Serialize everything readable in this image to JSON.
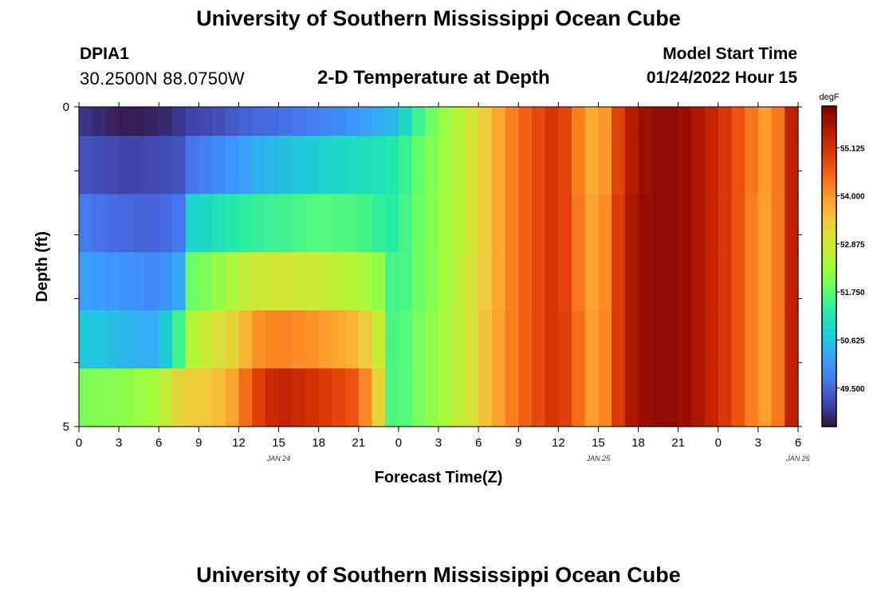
{
  "header": {
    "title": "University of Southern Mississippi Ocean Cube",
    "station_id": "DPIA1",
    "coordinates": "30.2500N  88.0750W",
    "plot_title": "2-D Temperature at Depth",
    "model_start_label": "Model Start Time",
    "model_start_value": "01/24/2022 Hour 15"
  },
  "footer": {
    "title": "University of Southern Mississippi Ocean Cube"
  },
  "colors": {
    "scale": [
      "#30123b",
      "#4145ab",
      "#4675ed",
      "#39a2fc",
      "#1bcfd4",
      "#24eca6",
      "#61fc6c",
      "#a4fc3b",
      "#d1e834",
      "#f3c63a",
      "#fe9b2d",
      "#f36315",
      "#d93806",
      "#b11901",
      "#7a0403"
    ]
  },
  "chart_data": {
    "type": "heatmap",
    "title": "2-D Temperature at Depth",
    "xlabel": "Forecast Time(Z)",
    "ylabel": "Depth (ft)",
    "x_ticks": [
      "0",
      "3",
      "6",
      "9",
      "12",
      "15",
      "18",
      "21",
      "0",
      "3",
      "6",
      "9",
      "12",
      "15",
      "18",
      "21",
      "0",
      "3",
      "6"
    ],
    "date_labels": [
      {
        "label": "JAN 24",
        "at_hour": 15
      },
      {
        "label": "JAN 25",
        "at_hour": 39
      },
      {
        "label": "JAN 26",
        "at_hour": 54
      }
    ],
    "x_range_hours": [
      0,
      54
    ],
    "y_ticks": [
      "0",
      "5"
    ],
    "y_range": [
      0,
      5
    ],
    "depth_rows": [
      0,
      1,
      2,
      3,
      4,
      5
    ],
    "colorbar": {
      "unit": "degF",
      "min": 48.6,
      "max": 56.1,
      "tick_labels": [
        "55.125",
        "54.000",
        "52.875",
        "51.750",
        "50.625",
        "49.500"
      ]
    },
    "keyframes": [
      {
        "hour": 0,
        "values": [
          49.0,
          49.3,
          49.8,
          50.2,
          50.7,
          52.0
        ]
      },
      {
        "hour": 2,
        "values": [
          48.8,
          49.2,
          49.6,
          50.1,
          50.6,
          52.1
        ]
      },
      {
        "hour": 4,
        "values": [
          48.7,
          49.1,
          49.5,
          50.0,
          50.4,
          52.2
        ]
      },
      {
        "hour": 6,
        "values": [
          48.8,
          49.2,
          49.5,
          49.9,
          50.3,
          52.4
        ]
      },
      {
        "hour": 7.5,
        "values": [
          49.0,
          49.3,
          49.7,
          50.3,
          51.5,
          53.2
        ]
      },
      {
        "hour": 8,
        "values": [
          49.1,
          49.6,
          50.8,
          51.8,
          52.4,
          53.3
        ]
      },
      {
        "hour": 10,
        "values": [
          49.2,
          49.9,
          51.0,
          52.1,
          52.9,
          53.4
        ]
      },
      {
        "hour": 12,
        "values": [
          49.4,
          50.1,
          51.3,
          52.6,
          53.3,
          54.0
        ]
      },
      {
        "hour": 13,
        "values": [
          49.5,
          50.3,
          51.4,
          52.8,
          54.0,
          54.8
        ]
      },
      {
        "hour": 15,
        "values": [
          49.6,
          50.5,
          51.5,
          52.9,
          54.2,
          55.4
        ]
      },
      {
        "hour": 18,
        "values": [
          49.8,
          50.8,
          51.7,
          52.8,
          54.0,
          55.1
        ]
      },
      {
        "hour": 21,
        "values": [
          50.1,
          51.0,
          51.6,
          52.5,
          53.6,
          54.6
        ]
      },
      {
        "hour": 22.5,
        "values": [
          50.3,
          51.1,
          51.4,
          52.2,
          52.8,
          53.2
        ]
      },
      {
        "hour": 23,
        "values": [
          50.4,
          51.2,
          51.3,
          51.7,
          51.7,
          51.8
        ]
      },
      {
        "hour": 24,
        "values": [
          50.6,
          51.2,
          51.3,
          51.4,
          51.5,
          51.5
        ]
      },
      {
        "hour": 25,
        "values": [
          51.3,
          51.7,
          51.8,
          51.8,
          51.9,
          51.9
        ]
      },
      {
        "hour": 27,
        "values": [
          52.1,
          52.2,
          52.2,
          52.2,
          52.3,
          52.3
        ]
      },
      {
        "hour": 29,
        "values": [
          52.7,
          52.7,
          52.7,
          52.8,
          52.8,
          52.8
        ]
      },
      {
        "hour": 31,
        "values": [
          53.6,
          53.6,
          53.6,
          53.6,
          53.7,
          53.7
        ]
      },
      {
        "hour": 33,
        "values": [
          54.4,
          54.4,
          54.4,
          54.4,
          54.4,
          54.4
        ]
      },
      {
        "hour": 36,
        "values": [
          55.2,
          55.2,
          55.2,
          55.2,
          55.2,
          55.2
        ]
      },
      {
        "hour": 38,
        "values": [
          53.9,
          53.9,
          54.0,
          54.0,
          54.1,
          54.1
        ]
      },
      {
        "hour": 39,
        "values": [
          53.6,
          53.6,
          53.7,
          53.7,
          53.8,
          53.8
        ]
      },
      {
        "hour": 40,
        "values": [
          54.4,
          54.4,
          54.5,
          54.5,
          54.5,
          54.5
        ]
      },
      {
        "hour": 41,
        "values": [
          55.4,
          55.4,
          55.5,
          55.5,
          55.5,
          55.5
        ]
      },
      {
        "hour": 43,
        "values": [
          55.9,
          55.9,
          55.9,
          55.9,
          55.9,
          55.9
        ]
      },
      {
        "hour": 45,
        "values": [
          55.9,
          55.9,
          55.9,
          55.9,
          55.9,
          55.9
        ]
      },
      {
        "hour": 47,
        "values": [
          55.5,
          55.5,
          55.5,
          55.5,
          55.5,
          55.5
        ]
      },
      {
        "hour": 49,
        "values": [
          54.9,
          54.9,
          54.9,
          54.9,
          54.9,
          54.9
        ]
      },
      {
        "hour": 51,
        "values": [
          54.1,
          54.1,
          54.0,
          54.0,
          54.0,
          54.0
        ]
      },
      {
        "hour": 52,
        "values": [
          53.8,
          53.8,
          53.8,
          53.8,
          53.8,
          53.8
        ]
      },
      {
        "hour": 53,
        "values": [
          54.8,
          54.8,
          54.8,
          54.8,
          54.8,
          54.8
        ]
      },
      {
        "hour": 54,
        "values": [
          56.0,
          56.0,
          56.0,
          56.0,
          56.0,
          56.0
        ]
      }
    ]
  }
}
